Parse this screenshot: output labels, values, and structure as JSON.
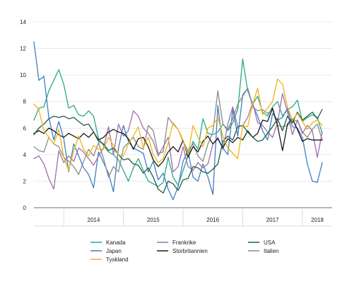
{
  "chart_data": {
    "type": "line",
    "title": "",
    "xlabel": "",
    "ylabel": "",
    "ylim": [
      0,
      14
    ],
    "yticks": [
      "0",
      "2",
      "4",
      "6",
      "8",
      "10",
      "12",
      "14"
    ],
    "year_labels": [
      "2014",
      "2015",
      "2016",
      "2017",
      "2018"
    ],
    "grid": "horizontal",
    "legend_position": "bottom",
    "x": [
      "2013-07",
      "2013-08",
      "2013-09",
      "2013-10",
      "2013-11",
      "2013-12",
      "2014-01",
      "2014-02",
      "2014-03",
      "2014-04",
      "2014-05",
      "2014-06",
      "2014-07",
      "2014-08",
      "2014-09",
      "2014-10",
      "2014-11",
      "2014-12",
      "2015-01",
      "2015-02",
      "2015-03",
      "2015-04",
      "2015-05",
      "2015-06",
      "2015-07",
      "2015-08",
      "2015-09",
      "2015-10",
      "2015-11",
      "2015-12",
      "2016-01",
      "2016-02",
      "2016-03",
      "2016-04",
      "2016-05",
      "2016-06",
      "2016-07",
      "2016-08",
      "2016-09",
      "2016-10",
      "2016-11",
      "2016-12",
      "2017-01",
      "2017-02",
      "2017-03",
      "2017-04",
      "2017-05",
      "2017-06",
      "2017-07",
      "2017-08",
      "2017-09",
      "2017-10",
      "2017-11",
      "2017-12",
      "2018-01",
      "2018-02",
      "2018-03",
      "2018-04",
      "2018-05"
    ],
    "series": [
      {
        "name": "Kanada",
        "color": "#2aa887",
        "values": [
          6.6,
          7.5,
          7.6,
          8.8,
          9.6,
          10.4,
          9.3,
          7.5,
          7.7,
          7.0,
          6.9,
          7.3,
          6.9,
          5.2,
          4.7,
          4.2,
          4.0,
          3.6,
          2.8,
          2.0,
          3.0,
          3.7,
          2.8,
          2.0,
          1.8,
          1.6,
          1.9,
          3.8,
          2.3,
          1.7,
          2.8,
          3.9,
          5.0,
          4.4,
          6.7,
          5.6,
          5.5,
          5.7,
          6.3,
          5.8,
          6.4,
          7.4,
          11.2,
          8.8,
          7.8,
          8.4,
          7.2,
          6.9,
          7.6,
          8.0,
          6.9,
          7.4,
          7.6,
          8.1,
          6.5,
          6.8,
          7.0,
          6.8,
          5.6
        ]
      },
      {
        "name": "Japan",
        "color": "#3e7fc1",
        "values": [
          12.5,
          9.6,
          9.9,
          6.8,
          5.1,
          6.5,
          5.2,
          2.7,
          4.8,
          3.9,
          3.0,
          2.5,
          1.5,
          4.2,
          3.4,
          2.6,
          1.2,
          4.5,
          6.2,
          5.0,
          4.5,
          4.3,
          4.1,
          2.7,
          3.5,
          2.1,
          2.6,
          1.4,
          0.6,
          1.6,
          3.5,
          4.3,
          2.3,
          2.0,
          3.3,
          2.3,
          1.0,
          7.7,
          4.5,
          4.0,
          7.4,
          5.4,
          8.5,
          9.0,
          7.7,
          6.9,
          5.8,
          5.1,
          7.1,
          6.6,
          6.8,
          7.5,
          6.1,
          6.0,
          5.3,
          3.3,
          2.0,
          1.9,
          3.4
        ]
      },
      {
        "name": "Italien",
        "color": "#8a8a8a",
        "values": [
          4.6,
          4.3,
          4.2,
          5.3,
          4.8,
          4.6,
          3.8,
          3.5,
          3.1,
          2.5,
          3.5,
          4.4,
          3.9,
          4.9,
          3.7,
          2.3,
          3.1,
          2.7,
          4.5,
          4.9,
          5.3,
          4.6,
          4.4,
          6.2,
          5.8,
          4.1,
          4.2,
          6.8,
          6.3,
          5.9,
          5.0,
          4.3,
          4.8,
          3.9,
          3.5,
          4.8,
          5.7,
          8.8,
          6.3,
          5.9,
          6.7,
          7.8,
          8.4,
          9.0,
          7.6,
          7.3,
          7.4,
          7.1,
          7.4,
          6.2,
          6.1,
          6.2,
          6.5,
          6.6,
          5.7,
          5.3,
          5.9,
          6.3,
          5.1
        ]
      },
      {
        "name": "Frankrike",
        "color": "#9e6fae",
        "values": [
          3.7,
          3.9,
          3.3,
          2.2,
          1.4,
          4.3,
          3.4,
          3.9,
          3.5,
          4.5,
          4.2,
          3.7,
          3.2,
          3.9,
          4.5,
          6.1,
          4.0,
          6.3,
          5.4,
          5.8,
          7.3,
          6.9,
          6.0,
          5.6,
          5.0,
          3.9,
          4.6,
          5.3,
          2.7,
          3.1,
          4.6,
          3.1,
          2.8,
          3.4,
          3.0,
          3.3,
          4.8,
          5.3,
          4.4,
          6.3,
          7.6,
          6.1,
          6.2,
          6.8,
          7.9,
          6.4,
          6.2,
          5.7,
          5.3,
          6.4,
          8.6,
          7.2,
          5.5,
          6.6,
          5.6,
          6.2,
          5.8,
          3.8,
          5.7
        ]
      },
      {
        "name": "Storbritannien",
        "color": "#1a1a1a",
        "values": [
          5.6,
          5.8,
          5.6,
          6.0,
          5.8,
          5.5,
          5.3,
          5.6,
          5.4,
          5.2,
          5.6,
          5.3,
          5.7,
          5.1,
          5.3,
          5.7,
          5.9,
          5.7,
          5.6,
          5.2,
          4.4,
          5.2,
          5.3,
          4.6,
          3.6,
          3.1,
          3.5,
          4.2,
          4.6,
          4.2,
          5.1,
          3.8,
          4.6,
          4.2,
          5.0,
          5.4,
          4.8,
          5.2,
          4.5,
          5.2,
          4.9,
          5.3,
          5.1,
          5.8,
          5.3,
          5.6,
          6.6,
          6.5,
          7.5,
          6.2,
          4.3,
          6.3,
          6.7,
          5.9,
          5.0,
          5.2,
          5.1,
          5.1,
          5.1
        ]
      },
      {
        "name": "USA",
        "color": "#1e5e43",
        "values": [
          5.5,
          6.0,
          6.3,
          6.7,
          6.9,
          6.8,
          6.9,
          6.7,
          6.8,
          6.5,
          6.2,
          6.3,
          5.7,
          5.0,
          4.8,
          4.3,
          4.5,
          4.0,
          3.6,
          3.7,
          3.3,
          3.2,
          2.6,
          3.0,
          2.3,
          1.4,
          1.1,
          2.0,
          1.8,
          1.3,
          2.1,
          2.2,
          3.1,
          3.0,
          2.7,
          2.6,
          2.9,
          3.3,
          5.0,
          5.4,
          5.1,
          6.1,
          6.2,
          5.7,
          5.3,
          5.0,
          5.1,
          5.6,
          6.1,
          6.7,
          5.8,
          6.9,
          6.4,
          7.2,
          6.6,
          6.9,
          7.2,
          6.7,
          7.4
        ]
      },
      {
        "name": "Tyskland",
        "color": "#f2b418",
        "values": [
          7.8,
          7.4,
          5.8,
          5.3,
          4.8,
          5.9,
          3.8,
          2.8,
          4.3,
          5.4,
          4.4,
          3.9,
          4.7,
          4.4,
          4.4,
          5.3,
          4.7,
          4.0,
          3.9,
          4.8,
          5.4,
          6.1,
          4.5,
          5.3,
          4.0,
          3.4,
          3.7,
          4.9,
          6.4,
          5.9,
          5.1,
          4.0,
          6.2,
          5.3,
          4.6,
          6.0,
          6.2,
          6.8,
          5.4,
          4.5,
          4.1,
          3.7,
          6.2,
          6.1,
          7.8,
          9.0,
          7.0,
          7.5,
          8.0,
          9.7,
          9.3,
          7.6,
          6.6,
          7.1,
          6.5,
          5.9,
          6.4,
          6.6,
          6.2
        ]
      }
    ],
    "legend_order": [
      "Kanada",
      "Frankrike",
      "USA",
      "Japan",
      "Storbritannien",
      "Italien",
      "Tyskland"
    ]
  }
}
